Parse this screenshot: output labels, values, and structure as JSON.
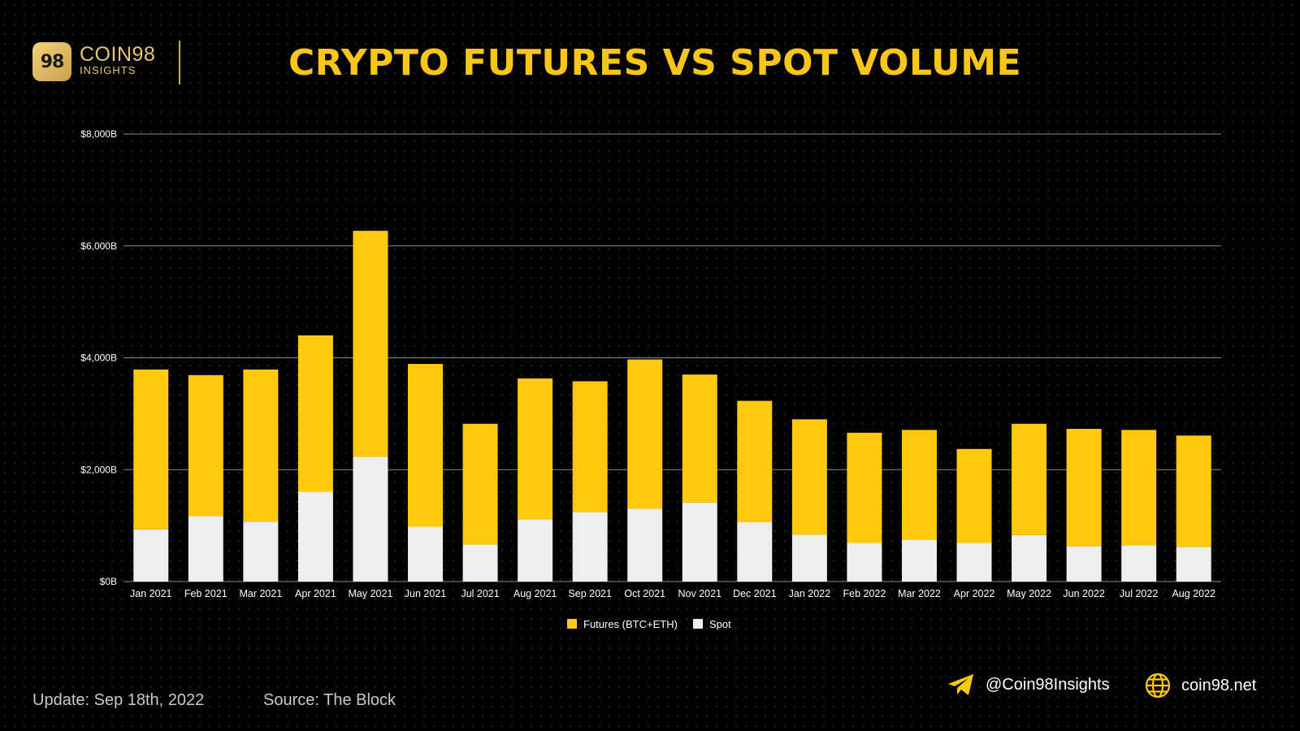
{
  "brand": {
    "name": "COIN98",
    "sub": "INSIGHTS",
    "mark": "98"
  },
  "title": "CRYPTO FUTURES VS SPOT VOLUME",
  "footer": {
    "update": "Update: Sep 18th, 2022",
    "source": "Source: The Block",
    "telegram": "@Coin98Insights",
    "website": "coin98.net"
  },
  "colors": {
    "futures": "#ffc90d",
    "spot": "#eeeeee",
    "title": "#f7c618"
  },
  "chart_data": {
    "type": "bar",
    "stacked": true,
    "categories": [
      "Jan 2021",
      "Feb 2021",
      "Mar 2021",
      "Apr 2021",
      "May 2021",
      "Jun 2021",
      "Jul 2021",
      "Aug 2021",
      "Sep 2021",
      "Oct 2021",
      "Nov 2021",
      "Dec 2021",
      "Jan 2022",
      "Feb 2022",
      "Mar 2022",
      "Apr 2022",
      "May 2022",
      "Jun 2022",
      "Jul 2022",
      "Aug 2022"
    ],
    "series": [
      {
        "name": "Spot",
        "values": [
          930,
          1170,
          1070,
          1610,
          2230,
          980,
          660,
          1110,
          1240,
          1300,
          1410,
          1060,
          840,
          690,
          750,
          690,
          830,
          630,
          650,
          620
        ]
      },
      {
        "name": "Futures (BTC+ETH)",
        "values": [
          2860,
          2520,
          2720,
          2790,
          4040,
          2910,
          2160,
          2520,
          2340,
          2670,
          2290,
          2170,
          2060,
          1970,
          1960,
          1680,
          1990,
          2100,
          2060,
          1990
        ]
      }
    ],
    "yticks": [
      "$0B",
      "$2,000B",
      "$4,000B",
      "$6,000B",
      "$8,000B"
    ],
    "ylim": [
      0,
      8000
    ],
    "grid": true,
    "legend": "bottom-center"
  }
}
